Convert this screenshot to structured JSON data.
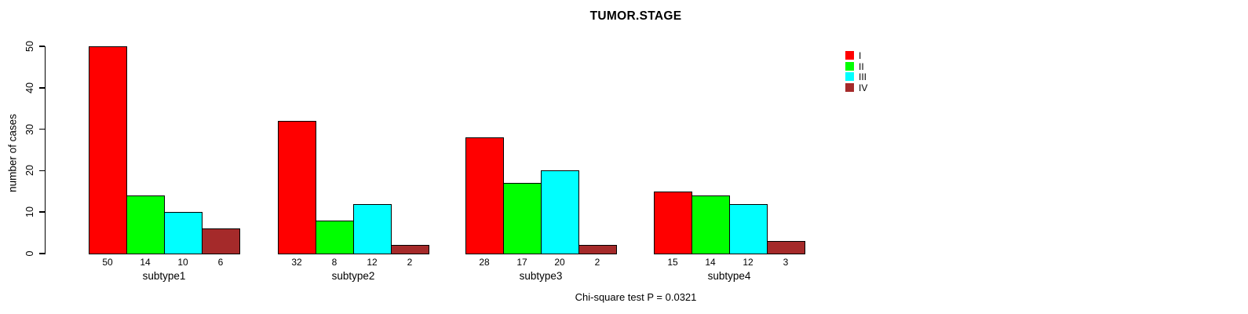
{
  "chart_data": {
    "type": "bar",
    "title": "TUMOR.STAGE",
    "ylabel": "number of cases",
    "xlabel": "",
    "caption": "Chi-square test P = 0.0321",
    "ylim": [
      0,
      50
    ],
    "yticks": [
      0,
      10,
      20,
      30,
      40,
      50
    ],
    "grid": false,
    "legend_position": "top-right",
    "categories": [
      "subtype1",
      "subtype2",
      "subtype3",
      "subtype4"
    ],
    "series": [
      {
        "name": "I",
        "color": "#FF0000",
        "values": [
          50,
          32,
          28,
          15
        ]
      },
      {
        "name": "II",
        "color": "#00FF00",
        "values": [
          14,
          8,
          17,
          14
        ]
      },
      {
        "name": "III",
        "color": "#00FFFF",
        "values": [
          10,
          12,
          20,
          12
        ]
      },
      {
        "name": "IV",
        "color": "#A52A2A",
        "values": [
          6,
          2,
          2,
          3
        ]
      }
    ],
    "bar_value_labels_shown": true
  },
  "colors": {
    "background": "#FFFFFF",
    "axis": "#000000",
    "text": "#000000"
  }
}
